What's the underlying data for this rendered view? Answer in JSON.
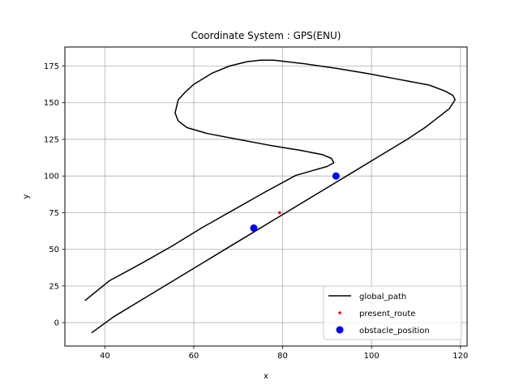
{
  "chart_data": {
    "type": "line",
    "title": "Coordinate System : GPS(ENU)",
    "xlabel": "x",
    "ylabel": "y",
    "xlim": [
      31.0,
      121.5
    ],
    "ylim": [
      -16.0,
      188.0
    ],
    "xticks": [
      40,
      60,
      80,
      100,
      120
    ],
    "yticks": [
      0,
      25,
      50,
      75,
      100,
      125,
      150,
      175
    ],
    "grid": true,
    "legend_position": "lower-right",
    "colors": {
      "global_path": "#000000",
      "present_route": "#ff0000",
      "obstacle_position": "#0000ff",
      "grid": "#b0b0b0"
    },
    "series": [
      {
        "name": "global_path",
        "kind": "line",
        "x": [
          37.0,
          42.0,
          48.0,
          54.0,
          60.0,
          66.0,
          72.0,
          78.0,
          84.0,
          90.0,
          96.0,
          102.0,
          108.0,
          112.0,
          115.0,
          117.5,
          118.8,
          118.3,
          116.5,
          113.0,
          106.0,
          99.0,
          92.0,
          85.0,
          78.0,
          75.0,
          72.0,
          68.0,
          64.0,
          60.0,
          58.0,
          56.5,
          55.8,
          56.5,
          58.5,
          63.0,
          70.0,
          77.0,
          84.0,
          89.0,
          91.0,
          91.5,
          90.0,
          83.0,
          76.0,
          69.0,
          62.0,
          55.0,
          48.0,
          41.0,
          35.5
        ],
        "y": [
          -7.0,
          4.0,
          15.0,
          26.0,
          37.0,
          48.0,
          59.0,
          70.0,
          81.0,
          92.0,
          103.0,
          114.0,
          125.0,
          133.0,
          140.0,
          146.0,
          152.0,
          155.0,
          158.0,
          162.0,
          166.0,
          170.0,
          173.5,
          176.5,
          179.0,
          179.0,
          178.0,
          175.0,
          170.0,
          162.5,
          157.0,
          152.0,
          143.0,
          137.5,
          133.0,
          129.0,
          125.0,
          121.0,
          117.5,
          114.5,
          112.0,
          109.0,
          106.5,
          100.5,
          89.0,
          77.0,
          65.0,
          52.0,
          40.0,
          28.5,
          15.0
        ]
      },
      {
        "name": "present_route",
        "kind": "point",
        "x": [
          79.3
        ],
        "y": [
          75.0
        ]
      },
      {
        "name": "obstacle_position",
        "kind": "point",
        "x": [
          73.5,
          92.0
        ],
        "y": [
          64.5,
          100.0
        ]
      }
    ]
  }
}
